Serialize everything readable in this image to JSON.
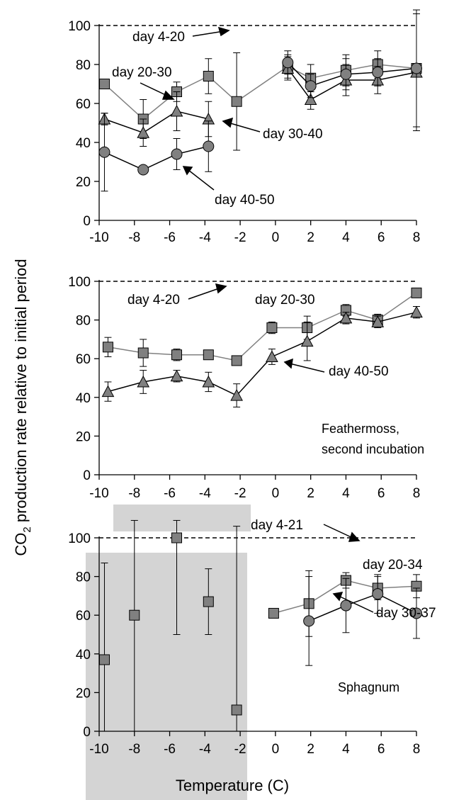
{
  "figure": {
    "ylabel_main": "CO",
    "ylabel_sub": "2",
    "ylabel_rest": " production rate relative to initial period",
    "xlabel": "Temperature (C)"
  },
  "colors": {
    "marker_fill": "#808080",
    "marker_stroke": "#000000",
    "line_gray": "#808080",
    "line_black": "#000000",
    "shade": "#d4d4d4"
  },
  "chart_data": [
    {
      "type": "line",
      "xlim": [
        -10,
        8
      ],
      "ylim": [
        0,
        100
      ],
      "xticks": [
        "-10",
        "-8",
        "-6",
        "-4",
        "-2",
        "0",
        "2",
        "4",
        "6",
        "8"
      ],
      "yticks": [
        "0",
        "20",
        "40",
        "60",
        "80",
        "100"
      ],
      "annotations": [
        "day 4-20",
        "day 20-30",
        "day 30-40",
        "day 40-50"
      ],
      "note": "",
      "series": [
        {
          "name": "day 4-20",
          "line": "dashed",
          "x": [
            -10,
            8
          ],
          "y": [
            100,
            100
          ]
        },
        {
          "name": "day 20-30",
          "marker": "square",
          "line": "gray",
          "x": [
            -9.7,
            -7.5,
            -5.6,
            -3.8,
            -2.2,
            0.7,
            2,
            4,
            5.8,
            8
          ],
          "y": [
            70,
            52,
            66,
            74,
            61,
            79,
            73,
            77,
            80,
            78
          ],
          "err": [
            0,
            10,
            5,
            9,
            25,
            6,
            7,
            8,
            7,
            30
          ]
        },
        {
          "name": "day 30-40",
          "marker": "triangle",
          "line": "black",
          "x": [
            -9.7,
            -7.5,
            -5.6,
            -3.8,
            0.7,
            2,
            4,
            5.8,
            8
          ],
          "y": [
            52,
            45,
            56,
            52,
            78,
            62,
            72,
            72,
            76
          ],
          "err": [
            3,
            7,
            10,
            9,
            6,
            5,
            8,
            7,
            30
          ]
        },
        {
          "name": "day 40-50",
          "marker": "circle",
          "line": "black",
          "x": [
            -9.7,
            -7.5,
            -5.6,
            -3.8,
            0.7,
            2,
            4,
            5.8,
            8
          ],
          "y": [
            35,
            26,
            34,
            38,
            81,
            69,
            75,
            76,
            78
          ],
          "err": [
            20,
            0,
            8,
            13,
            6,
            6,
            8,
            7,
            30
          ]
        }
      ]
    },
    {
      "type": "line",
      "xlim": [
        -10,
        8
      ],
      "ylim": [
        0,
        100
      ],
      "xticks": [
        "-10",
        "-8",
        "-6",
        "-4",
        "-2",
        "0",
        "2",
        "4",
        "6",
        "8"
      ],
      "yticks": [
        "0",
        "20",
        "40",
        "60",
        "80",
        "100"
      ],
      "annotations": [
        "day 4-20",
        "day 20-30",
        "day 40-50"
      ],
      "note_lines": [
        "Feathermoss,",
        "second incubation"
      ],
      "series": [
        {
          "name": "day 4-20",
          "line": "dashed",
          "x": [
            -10,
            8
          ],
          "y": [
            100,
            100
          ]
        },
        {
          "name": "day 20-30",
          "marker": "square",
          "line": "gray",
          "x": [
            -9.5,
            -7.5,
            -5.6,
            -3.8,
            -2.2,
            -0.2,
            1.8,
            4,
            5.8,
            8
          ],
          "y": [
            66,
            63,
            62,
            62,
            59,
            76,
            76,
            85,
            80,
            94
          ],
          "err": [
            5,
            7,
            3,
            2,
            2,
            3,
            6,
            3,
            3,
            0
          ]
        },
        {
          "name": "day 40-50",
          "marker": "triangle",
          "line": "black",
          "x": [
            -9.5,
            -7.5,
            -5.6,
            -3.8,
            -2.2,
            -0.2,
            1.8,
            4,
            5.8,
            8
          ],
          "y": [
            43,
            48,
            51,
            48,
            41,
            61,
            69,
            81,
            79,
            84
          ],
          "err": [
            5,
            6,
            3,
            5,
            6,
            4,
            10,
            3,
            3,
            3
          ]
        }
      ]
    },
    {
      "type": "line",
      "xlim": [
        -10,
        8
      ],
      "ylim": [
        0,
        100
      ],
      "xticks": [
        "-10",
        "-8",
        "-6",
        "-4",
        "-2",
        "0",
        "2",
        "4",
        "6",
        "8"
      ],
      "yticks": [
        "0",
        "20",
        "40",
        "60",
        "80",
        "100"
      ],
      "annotations": [
        "day 4-21",
        "day 20-34",
        "day 30-37"
      ],
      "note_lines": [
        "Sphagnum"
      ],
      "series": [
        {
          "name": "day 4-21",
          "line": "dashed",
          "x": [
            -10,
            8
          ],
          "y": [
            100,
            100
          ]
        },
        {
          "name": "day 20-34",
          "marker": "square",
          "line": "gray",
          "x": [
            -9.7,
            -8,
            -5.6,
            -3.8,
            -2.2,
            -0.1,
            1.9,
            4,
            5.8,
            8
          ],
          "y": [
            37,
            60,
            100,
            67,
            11,
            61,
            66,
            78,
            74,
            75
          ],
          "err": [
            50,
            60,
            50,
            17,
            95,
            0,
            17,
            4,
            6,
            6
          ]
        },
        {
          "name": "day 30-37",
          "marker": "circle",
          "line": "black",
          "x": [
            1.9,
            4,
            5.8,
            8
          ],
          "y": [
            57,
            65,
            71,
            61
          ],
          "err": [
            23,
            14,
            10,
            13
          ]
        }
      ]
    }
  ]
}
